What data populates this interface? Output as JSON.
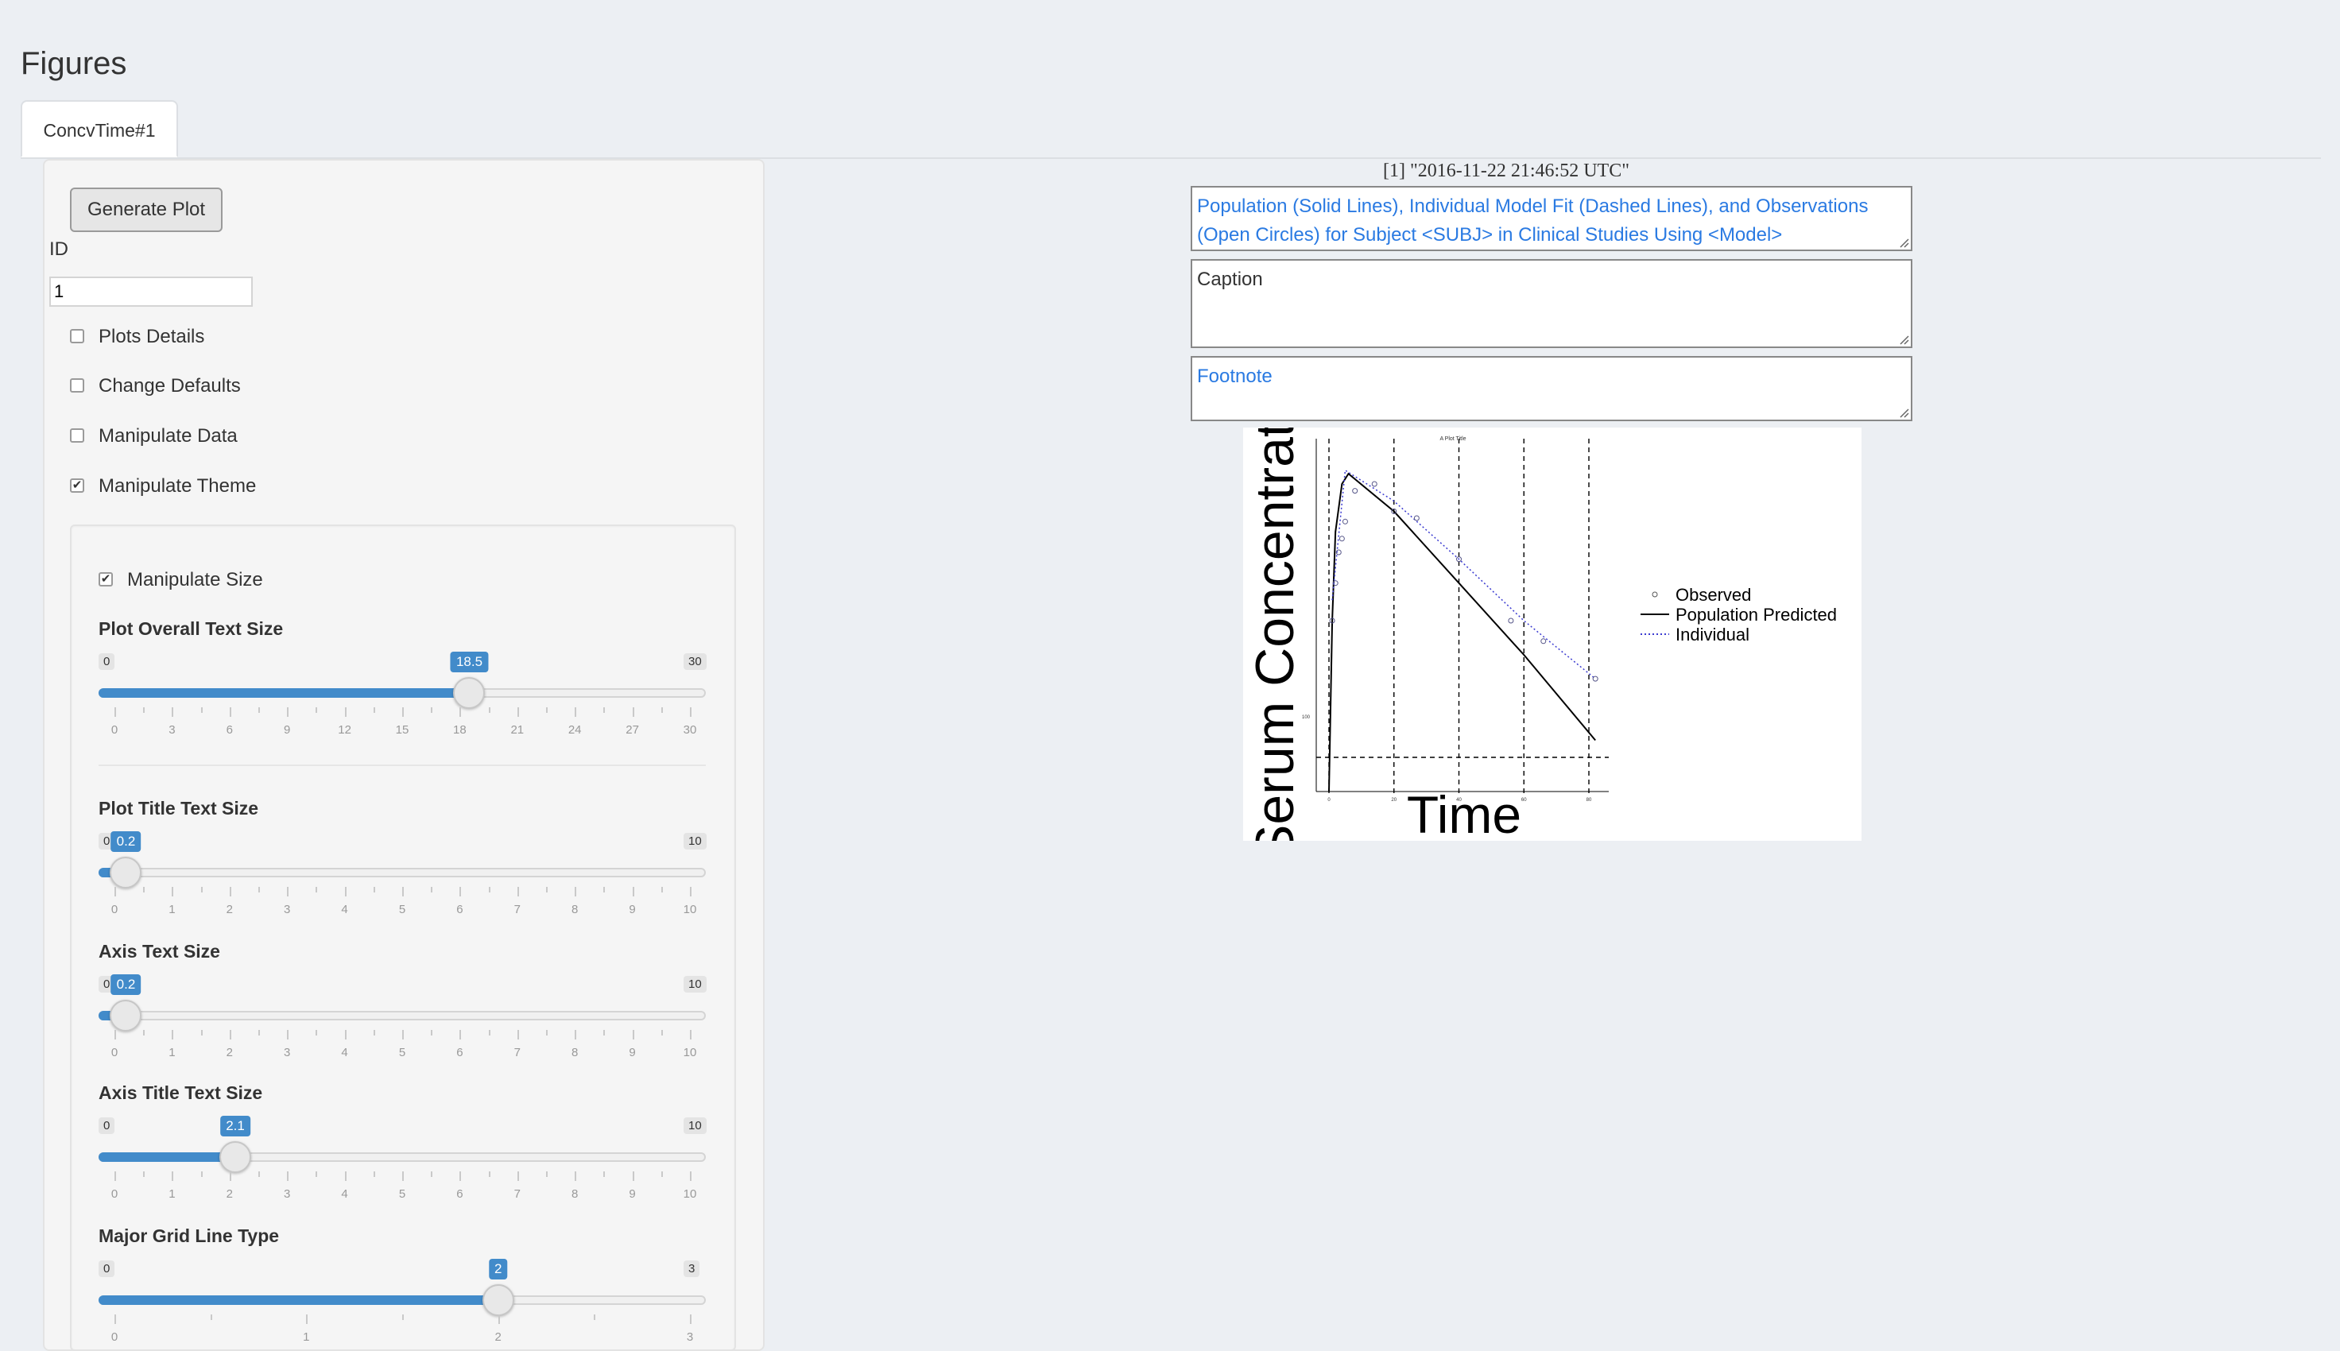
{
  "page": {
    "title": "Figures"
  },
  "tabs": [
    {
      "label": "ConcvTime#1"
    }
  ],
  "sidebar": {
    "generate_button": "Generate Plot",
    "id_label": "ID",
    "id_value": "1",
    "checkboxes": [
      {
        "label": "Plots Details",
        "checked": false
      },
      {
        "label": "Change Defaults",
        "checked": false
      },
      {
        "label": "Manipulate Data",
        "checked": false
      },
      {
        "label": "Manipulate Theme",
        "checked": true
      }
    ],
    "theme": {
      "manipulate_size": {
        "label": "Manipulate Size",
        "checked": true
      },
      "sliders": [
        {
          "label": "Plot Overall Text Size",
          "min": "0",
          "max": "30",
          "value": "18.5",
          "fraction": 0.6167,
          "ticks": [
            "0",
            "3",
            "6",
            "9",
            "12",
            "15",
            "18",
            "21",
            "24",
            "27",
            "30"
          ]
        },
        {
          "label": "Plot Title Text Size",
          "min": "0",
          "max": "10",
          "value": "0.2",
          "fraction": 0.02,
          "ticks": [
            "0",
            "1",
            "2",
            "3",
            "4",
            "5",
            "6",
            "7",
            "8",
            "9",
            "10"
          ]
        },
        {
          "label": "Axis Text Size",
          "min": "0",
          "max": "10",
          "value": "0.2",
          "fraction": 0.02,
          "ticks": [
            "0",
            "1",
            "2",
            "3",
            "4",
            "5",
            "6",
            "7",
            "8",
            "9",
            "10"
          ]
        },
        {
          "label": "Axis Title Text Size",
          "min": "0",
          "max": "10",
          "value": "2.1",
          "fraction": 0.21,
          "ticks": [
            "0",
            "1",
            "2",
            "3",
            "4",
            "5",
            "6",
            "7",
            "8",
            "9",
            "10"
          ]
        },
        {
          "label": "Major Grid Line Type",
          "min": "0",
          "max": "3",
          "value": "2",
          "fraction": 0.6667,
          "ticks": [
            "0",
            "1",
            "2",
            "3"
          ]
        }
      ]
    }
  },
  "main": {
    "timestamp": "[1] \"2016-11-22 21:46:52 UTC\"",
    "title_field": "Population (Solid Lines), Individual Model Fit (Dashed Lines), and Observations (Open Circles) for Subject <SUBJ> in Clinical Studies Using <Model>",
    "caption_field": "Caption",
    "footnote_field": "Footnote"
  },
  "plot": {
    "small_title": "A Plot Title",
    "ylabel": "Serum Concentrat",
    "xlabel": "Time",
    "ref_label": "100",
    "x_ticks": [
      "0",
      "20",
      "40",
      "60",
      "80"
    ],
    "legend": {
      "observed": "Observed",
      "population": "Population Predicted",
      "individual": "Individual"
    }
  },
  "chart_data": {
    "type": "line",
    "title": "A Plot Title",
    "xlabel": "Time",
    "ylabel": "Serum Concentrat",
    "series": [
      {
        "name": "Population Predicted",
        "style": "solid",
        "x": [
          0,
          1,
          2,
          4,
          6,
          20,
          40,
          60,
          82
        ],
        "y": [
          0,
          500,
          760,
          900,
          930,
          820,
          610,
          400,
          150
        ]
      },
      {
        "name": "Individual",
        "style": "dotted",
        "x": [
          1,
          5,
          20,
          40,
          60,
          82
        ],
        "y": [
          560,
          940,
          850,
          680,
          500,
          330
        ]
      },
      {
        "name": "Observed",
        "style": "points",
        "x": [
          1,
          2,
          3,
          4,
          5,
          8,
          14,
          20,
          27,
          40,
          56,
          66,
          82
        ],
        "y": [
          500,
          610,
          700,
          740,
          790,
          880,
          900,
          820,
          800,
          680,
          500,
          440,
          330
        ]
      }
    ],
    "reference_lines": {
      "vertical_x": [
        0,
        20,
        40,
        60,
        80
      ],
      "horizontal_y": 100
    },
    "colors": {
      "population": "#000000",
      "individual": "#3a3ad0",
      "observed": "#555588"
    }
  }
}
